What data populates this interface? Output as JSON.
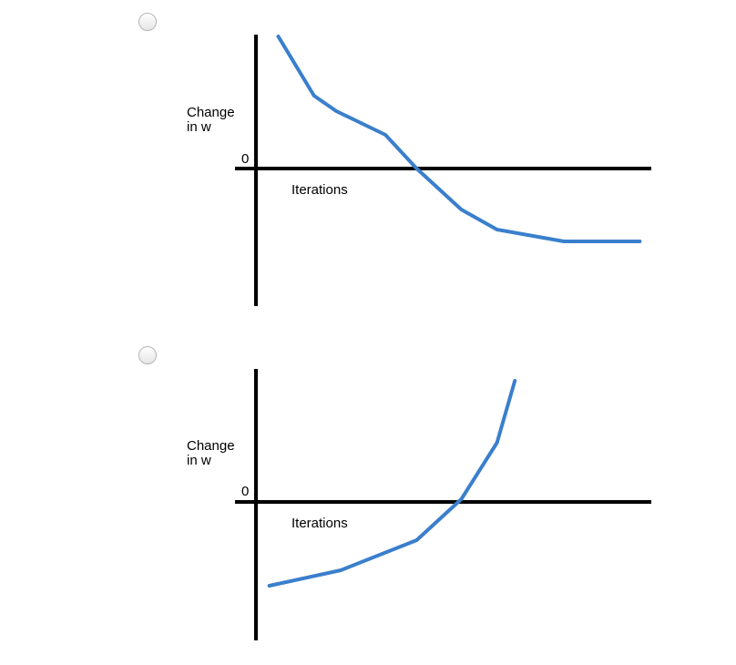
{
  "options": [
    {
      "radio_selected": false,
      "chart_data": {
        "type": "line",
        "title": "",
        "ylabel_lines": [
          "Change",
          "in w"
        ],
        "xlabel": "Iterations",
        "origin_label": "0",
        "x": [
          0.5,
          1.3,
          1.8,
          2.9,
          3.6,
          4.6,
          5.4,
          6.9,
          8.6
        ],
        "y": [
          1.45,
          0.8,
          0.63,
          0.37,
          0.0,
          -0.45,
          -0.67,
          -0.8,
          -0.8
        ],
        "xlim": [
          0,
          8.6
        ],
        "ylim": [
          -1.5,
          1.5
        ],
        "line_color": "#3a7fcc",
        "axis_color": "#000000",
        "grid": false,
        "legend": "none"
      }
    },
    {
      "radio_selected": false,
      "chart_data": {
        "type": "line",
        "title": "",
        "ylabel_lines": [
          "Change",
          "in w"
        ],
        "xlabel": "Iterations",
        "origin_label": "0",
        "x": [
          0.3,
          1.9,
          3.6,
          4.6,
          5.4,
          5.8
        ],
        "y": [
          -0.92,
          -0.75,
          -0.42,
          0.03,
          0.65,
          1.33
        ],
        "xlim": [
          0,
          8.6
        ],
        "ylim": [
          -1.5,
          1.5
        ],
        "line_color": "#3a7fcc",
        "axis_color": "#000000",
        "grid": false,
        "legend": "none"
      }
    }
  ]
}
